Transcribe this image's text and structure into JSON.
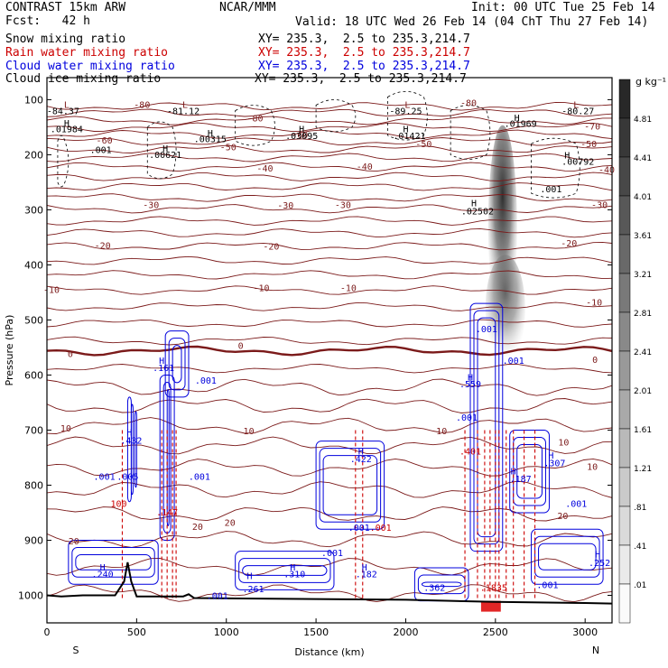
{
  "header": {
    "title": "CONTRAST 15km ARW",
    "fcst_label": "Fcst:",
    "fcst_value": "42 h",
    "center": "NCAR/MMM",
    "init": "Init: 00 UTC Tue 25 Feb 14",
    "valid": "Valid: 18 UTC Wed 26 Feb 14 (04 ChT Thu 27 Feb 14)"
  },
  "fields": [
    {
      "name": "Snow mixing ratio",
      "xy": "XY= 235.3,  2.5 to 235.3,214.7",
      "color": "#000000"
    },
    {
      "name": "Rain water mixing ratio",
      "xy": "XY= 235.3,  2.5 to 235.3,214.7",
      "color": "#cc0000"
    },
    {
      "name": "Cloud water mixing ratio",
      "xy": "XY= 235.3,  2.5 to 235.3,214.7",
      "color": "#0000dd"
    },
    {
      "name": "Cloud ice mixing ratio",
      "xy": "XY= 235.3,  2.5 to 235.3,214.7",
      "color": "#000000"
    }
  ],
  "chart_data": {
    "type": "cross-section",
    "xlabel": "Distance (km)",
    "ylabel": "Pressure (hPa)",
    "xlim": [
      0,
      3150
    ],
    "ylim": [
      1050,
      60
    ],
    "x_ticks": [
      0,
      500,
      1000,
      1500,
      2000,
      2500,
      3000
    ],
    "y_ticks": [
      100,
      200,
      300,
      400,
      500,
      600,
      700,
      800,
      900,
      1000
    ],
    "direction_left": "S",
    "direction_right": "N",
    "colorbar": {
      "unit": "g kg⁻¹",
      "levels": [
        4.81,
        4.41,
        4.01,
        3.61,
        3.21,
        2.81,
        2.41,
        2.01,
        1.61,
        1.21,
        0.81,
        0.41,
        0.01
      ],
      "labels": [
        "4.81",
        "4.41",
        "4.01",
        "3.61",
        "3.21",
        "2.81",
        "2.41",
        "2.01",
        "1.61",
        "1.21",
        ".81",
        ".41",
        ".01"
      ]
    },
    "temperature_contours": {
      "color": "#7b1a1a",
      "levels": [
        -80,
        -70,
        -60,
        -50,
        -40,
        -30,
        -20,
        -10,
        0,
        10,
        20
      ],
      "labels": [
        {
          "text": "-80",
          "x": 530,
          "p": 108
        },
        {
          "text": "-80",
          "x": 2350,
          "p": 105
        },
        {
          "text": "-80",
          "x": 1160,
          "p": 133
        },
        {
          "text": "-70",
          "x": 3040,
          "p": 148
        },
        {
          "text": "-60",
          "x": 1410,
          "p": 163
        },
        {
          "text": "-60",
          "x": 320,
          "p": 173
        },
        {
          "text": "-50",
          "x": 1010,
          "p": 185
        },
        {
          "text": "-50",
          "x": 2100,
          "p": 180
        },
        {
          "text": "-50",
          "x": 3020,
          "p": 180
        },
        {
          "text": "-40",
          "x": 1215,
          "p": 224
        },
        {
          "text": "-40",
          "x": 1770,
          "p": 221
        },
        {
          "text": "-40",
          "x": 3120,
          "p": 226
        },
        {
          "text": "-30",
          "x": 580,
          "p": 290
        },
        {
          "text": "-30",
          "x": 1330,
          "p": 291
        },
        {
          "text": "-30",
          "x": 1650,
          "p": 290
        },
        {
          "text": "-30",
          "x": 3080,
          "p": 290
        },
        {
          "text": "-20",
          "x": 310,
          "p": 364
        },
        {
          "text": "-20",
          "x": 1250,
          "p": 366
        },
        {
          "text": "-20",
          "x": 2910,
          "p": 360
        },
        {
          "text": "-10",
          "x": 25,
          "p": 444
        },
        {
          "text": "-10",
          "x": 1195,
          "p": 441
        },
        {
          "text": "-10",
          "x": 1680,
          "p": 441
        },
        {
          "text": "-10",
          "x": 3050,
          "p": 467
        },
        {
          "text": "0",
          "x": 130,
          "p": 561
        },
        {
          "text": "0",
          "x": 1080,
          "p": 546
        },
        {
          "text": "0",
          "x": 3055,
          "p": 571
        },
        {
          "text": "10",
          "x": 105,
          "p": 696
        },
        {
          "text": "10",
          "x": 1125,
          "p": 701
        },
        {
          "text": "10",
          "x": 2200,
          "p": 701
        },
        {
          "text": "10",
          "x": 2880,
          "p": 721
        },
        {
          "text": "10",
          "x": 3040,
          "p": 766
        },
        {
          "text": "20",
          "x": 1020,
          "p": 867
        },
        {
          "text": "20",
          "x": 840,
          "p": 875
        },
        {
          "text": "20",
          "x": 2875,
          "p": 855
        },
        {
          "text": "20",
          "x": 150,
          "p": 901
        }
      ]
    },
    "extrema_labels": [
      {
        "text": "L",
        "x": 110,
        "p": 108,
        "color": "#7b1a1a"
      },
      {
        "text": "-84.37",
        "x": 90,
        "p": 120,
        "color": "#000000"
      },
      {
        "text": "L",
        "x": 770,
        "p": 108,
        "color": "#7b1a1a"
      },
      {
        "text": "-81.12",
        "x": 760,
        "p": 120,
        "color": "#000000"
      },
      {
        "text": "L",
        "x": 2010,
        "p": 108,
        "color": "#7b1a1a"
      },
      {
        "text": "-89.25",
        "x": 2000,
        "p": 120,
        "color": "#000000"
      },
      {
        "text": "L",
        "x": 2950,
        "p": 108,
        "color": "#7b1a1a"
      },
      {
        "text": "-80.27",
        "x": 2960,
        "p": 120,
        "color": "#000000"
      },
      {
        "text": "H",
        "x": 110,
        "p": 142,
        "color": "#000000"
      },
      {
        "text": ".01984",
        "x": 110,
        "p": 153,
        "color": "#000000"
      },
      {
        "text": "H",
        "x": 910,
        "p": 160,
        "color": "#000000"
      },
      {
        "text": ".00315",
        "x": 910,
        "p": 171,
        "color": "#000000"
      },
      {
        "text": "H",
        "x": 1420,
        "p": 153,
        "color": "#000000"
      },
      {
        "text": ".03095",
        "x": 1420,
        "p": 165,
        "color": "#000000"
      },
      {
        "text": "H",
        "x": 2000,
        "p": 153,
        "color": "#000000"
      },
      {
        "text": ".01421",
        "x": 2020,
        "p": 165,
        "color": "#000000"
      },
      {
        "text": "H",
        "x": 2620,
        "p": 132,
        "color": "#000000"
      },
      {
        "text": ".01969",
        "x": 2640,
        "p": 143,
        "color": "#000000"
      },
      {
        "text": ".001",
        "x": 300,
        "p": 190,
        "color": "#000000"
      },
      {
        "text": "H",
        "x": 660,
        "p": 188,
        "color": "#000000"
      },
      {
        "text": ".00621",
        "x": 660,
        "p": 199,
        "color": "#000000"
      },
      {
        "text": "H",
        "x": 2900,
        "p": 200,
        "color": "#000000"
      },
      {
        "text": ".00792",
        "x": 2960,
        "p": 212,
        "color": "#000000"
      },
      {
        "text": ".001",
        "x": 2810,
        "p": 262,
        "color": "#000000"
      },
      {
        "text": "H",
        "x": 2380,
        "p": 287,
        "color": "#000000"
      },
      {
        "text": ".02502",
        "x": 2400,
        "p": 302,
        "color": "#000000"
      },
      {
        "text": ".001",
        "x": 2450,
        "p": 516,
        "color": "#0000dd"
      },
      {
        "text": "H",
        "x": 640,
        "p": 573,
        "color": "#0000dd"
      },
      {
        "text": ".161",
        "x": 650,
        "p": 586,
        "color": "#0000dd"
      },
      {
        "text": ".001",
        "x": 885,
        "p": 609,
        "color": "#0000dd"
      },
      {
        "text": ".001",
        "x": 2600,
        "p": 573,
        "color": "#0000dd"
      },
      {
        "text": "H",
        "x": 2360,
        "p": 603,
        "color": "#0000dd"
      },
      {
        "text": ".559",
        "x": 2360,
        "p": 616,
        "color": "#0000dd"
      },
      {
        "text": ".001",
        "x": 2340,
        "p": 676,
        "color": "#0000dd"
      },
      {
        "text": ".401",
        "x": 2360,
        "p": 738,
        "color": "#cc0000"
      },
      {
        "text": "H",
        "x": 460,
        "p": 703,
        "color": "#0000dd"
      },
      {
        "text": ".432",
        "x": 470,
        "p": 718,
        "color": "#0000dd"
      },
      {
        "text": ".001",
        "x": 320,
        "p": 784,
        "color": "#0000dd"
      },
      {
        "text": ".005",
        "x": 450,
        "p": 784,
        "color": "#0000dd"
      },
      {
        "text": ".001",
        "x": 850,
        "p": 784,
        "color": "#0000dd"
      },
      {
        "text": "100",
        "x": 400,
        "p": 833,
        "color": "#cc0000"
      },
      {
        "text": ".147",
        "x": 670,
        "p": 848,
        "color": "#cc0000"
      },
      {
        "text": "H",
        "x": 1750,
        "p": 738,
        "color": "#0000dd"
      },
      {
        "text": ".422",
        "x": 1750,
        "p": 752,
        "color": "#0000dd"
      },
      {
        "text": "H",
        "x": 2600,
        "p": 774,
        "color": "#0000dd"
      },
      {
        "text": ".187",
        "x": 2640,
        "p": 788,
        "color": "#0000dd"
      },
      {
        "text": "H",
        "x": 2810,
        "p": 745,
        "color": "#0000dd"
      },
      {
        "text": ".307",
        "x": 2830,
        "p": 759,
        "color": "#0000dd"
      },
      {
        "text": ".001",
        "x": 2950,
        "p": 833,
        "color": "#0000dd"
      },
      {
        "text": ".001",
        "x": 1740,
        "p": 876,
        "color": "#0000dd"
      },
      {
        "text": ".001",
        "x": 1860,
        "p": 876,
        "color": "#cc0000"
      },
      {
        "text": ".001",
        "x": 1590,
        "p": 922,
        "color": "#0000dd"
      },
      {
        "text": "H",
        "x": 310,
        "p": 948,
        "color": "#0000dd"
      },
      {
        "text": ".240",
        "x": 310,
        "p": 961,
        "color": "#0000dd"
      },
      {
        "text": "H",
        "x": 1130,
        "p": 964,
        "color": "#0000dd"
      },
      {
        "text": ".261",
        "x": 1150,
        "p": 988,
        "color": "#0000dd"
      },
      {
        "text": "H",
        "x": 1370,
        "p": 948,
        "color": "#0000dd"
      },
      {
        "text": ".310",
        "x": 1380,
        "p": 961,
        "color": "#0000dd"
      },
      {
        "text": "H",
        "x": 1770,
        "p": 948,
        "color": "#0000dd"
      },
      {
        "text": ".182",
        "x": 1780,
        "p": 961,
        "color": "#0000dd"
      },
      {
        "text": ".362",
        "x": 2160,
        "p": 985,
        "color": "#0000dd"
      },
      {
        "text": ".1835",
        "x": 2490,
        "p": 985,
        "color": "#cc0000"
      },
      {
        "text": ".001",
        "x": 950,
        "p": 1000,
        "color": "#0000dd"
      },
      {
        "text": ".001",
        "x": 2790,
        "p": 980,
        "color": "#0000dd"
      },
      {
        "text": "H",
        "x": 3070,
        "p": 925,
        "color": "#0000dd"
      },
      {
        "text": ".252",
        "x": 3080,
        "p": 940,
        "color": "#0000dd"
      }
    ]
  }
}
